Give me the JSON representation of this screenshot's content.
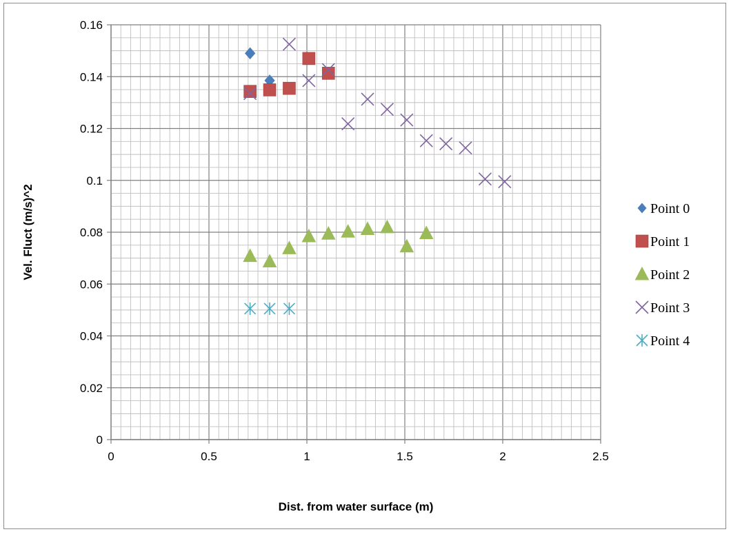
{
  "chart_data": {
    "type": "scatter",
    "xlabel": "Dist. from water surface (m)",
    "ylabel": "Vel. Fluct (m/s)^2",
    "xlim": [
      0,
      2.5
    ],
    "ylim": [
      0,
      0.16
    ],
    "x_ticks": [
      "0",
      "0.5",
      "1",
      "1.5",
      "2",
      "2.5"
    ],
    "y_ticks": [
      "0",
      "0.02",
      "0.04",
      "0.06",
      "0.08",
      "0.1",
      "0.12",
      "0.14",
      "0.16"
    ],
    "grid": true,
    "legend_position": "right",
    "series": [
      {
        "name": "Point 0",
        "marker": "diamond",
        "color": "#4a7ebb",
        "points": [
          [
            0.71,
            0.149
          ],
          [
            0.81,
            0.1385
          ]
        ]
      },
      {
        "name": "Point 1",
        "marker": "square",
        "color": "#c0504d",
        "points": [
          [
            0.71,
            0.1343
          ],
          [
            0.81,
            0.1349
          ],
          [
            0.91,
            0.1355
          ],
          [
            1.01,
            0.147
          ],
          [
            1.11,
            0.1413
          ]
        ]
      },
      {
        "name": "Point 2",
        "marker": "triangle",
        "color": "#9bbb59",
        "points": [
          [
            0.71,
            0.0708
          ],
          [
            0.81,
            0.0687
          ],
          [
            0.91,
            0.0738
          ],
          [
            1.01,
            0.0784
          ],
          [
            1.11,
            0.0794
          ],
          [
            1.21,
            0.0802
          ],
          [
            1.31,
            0.0812
          ],
          [
            1.41,
            0.0819
          ],
          [
            1.51,
            0.0745
          ],
          [
            1.61,
            0.0796
          ]
        ]
      },
      {
        "name": "Point 3",
        "marker": "x",
        "color": "#8064a2",
        "points": [
          [
            0.71,
            0.1335
          ],
          [
            0.91,
            0.1525
          ],
          [
            1.01,
            0.1385
          ],
          [
            1.11,
            0.1427
          ],
          [
            1.21,
            0.1218
          ],
          [
            1.31,
            0.1313
          ],
          [
            1.41,
            0.1274
          ],
          [
            1.51,
            0.1233
          ],
          [
            1.61,
            0.1153
          ],
          [
            1.71,
            0.1141
          ],
          [
            1.81,
            0.1125
          ],
          [
            1.91,
            0.1005
          ],
          [
            2.01,
            0.0995
          ]
        ]
      },
      {
        "name": "Point 4",
        "marker": "asterisk",
        "color": "#4bacc6",
        "points": [
          [
            0.71,
            0.0505
          ],
          [
            0.81,
            0.0505
          ],
          [
            0.91,
            0.0505
          ]
        ]
      }
    ]
  }
}
